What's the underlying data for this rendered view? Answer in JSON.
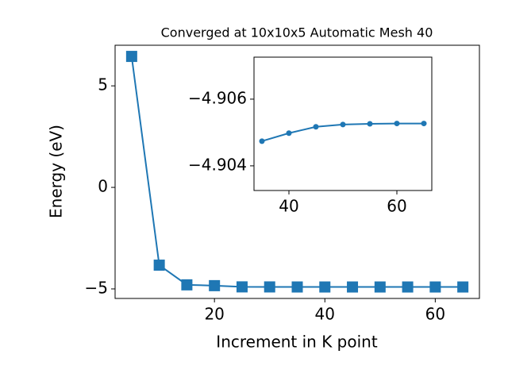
{
  "chart_data": [
    {
      "type": "line",
      "title": "Converged at 10x10x5 Automatic Mesh 40",
      "x_label": "Increment in K point",
      "y_label": "Energy (eV)",
      "x": [
        5,
        10,
        15,
        20,
        25,
        30,
        35,
        40,
        45,
        50,
        55,
        60,
        65
      ],
      "values": [
        6.45,
        -3.83,
        -4.8,
        -4.84,
        -4.9,
        -4.902,
        -4.90474,
        -4.90498,
        -4.90517,
        -4.90524,
        -4.90526,
        -4.90527,
        -4.90527
      ],
      "color": "#1f77b4",
      "marker": "square",
      "xlim": [
        2,
        68
      ],
      "xticks": [
        20,
        40,
        60
      ],
      "ylim": [
        -5.47,
        7
      ],
      "yticks": [
        {
          "value": -5,
          "label": "−5"
        },
        0,
        5
      ]
    },
    {
      "type": "line",
      "x": [
        35,
        40,
        45,
        50,
        55,
        60,
        65
      ],
      "values": [
        -4.90474,
        -4.90498,
        -4.90517,
        -4.90524,
        -4.90526,
        -4.90527,
        -4.90527
      ],
      "color": "#1f77b4",
      "marker": "circle",
      "xlim": [
        33.53,
        66.47
      ],
      "xticks": [
        40,
        60
      ],
      "ylim": [
        -4.90326,
        -4.90726
      ],
      "yticks": [
        {
          "value": -4.906,
          "label": "−4.906"
        },
        {
          "value": -4.904,
          "label": "−4.904"
        }
      ]
    }
  ]
}
